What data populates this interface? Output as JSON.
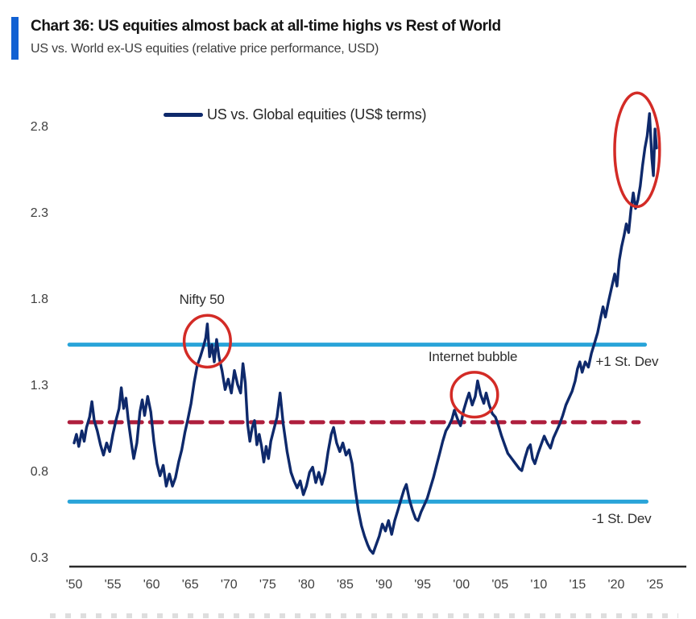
{
  "header": {
    "title": "Chart 36: US equities almost back at all-time highs vs Rest of World",
    "subtitle": "US vs. World ex-US equities (relative price performance, USD)",
    "accent_color": "#1161d3"
  },
  "legend": {
    "label": "US vs. Global equities (US$ terms)",
    "line_color": "#0e296b"
  },
  "chart_data": {
    "type": "line",
    "title": "US vs. Global equities (US$ terms)",
    "xlabel": "",
    "ylabel": "",
    "x_range": [
      1950,
      2025
    ],
    "y_range": [
      0.3,
      2.8
    ],
    "grid": false,
    "legend_position": "top-left-inside",
    "axis_color": "#2a2a2a",
    "y_tick_labels": [
      "2.8",
      "2.3",
      "1.8",
      "1.3",
      "0.8",
      "0.3"
    ],
    "x_tick_labels": [
      "'50",
      "'55",
      "'60",
      "'65",
      "'70",
      "'75",
      "'80",
      "'85",
      "'90",
      "'95",
      "'00",
      "'05",
      "'10",
      "'15",
      "'20",
      "'25"
    ],
    "x_tick_years": [
      1950,
      1955,
      1960,
      1965,
      1970,
      1975,
      1980,
      1985,
      1990,
      1995,
      2000,
      2005,
      2010,
      2015,
      2020,
      2025
    ],
    "ref_lines": [
      {
        "id": "plus-1-st-dev",
        "value": 1.54,
        "label": "+1 St. Dev",
        "style": "solid",
        "color": "#29a4d9",
        "x_start": 1949.4,
        "x_end": 2023.7,
        "label_pos": [
          2021.4,
          1.44
        ]
      },
      {
        "id": "mean",
        "value": 1.09,
        "label": "",
        "style": "dashed",
        "color": "#ae1e3d",
        "x_start": 1949.4,
        "x_end": 2022.9
      },
      {
        "id": "minus-1-st-dev",
        "value": 0.63,
        "label": "-1 St. Dev",
        "style": "solid",
        "color": "#29a4d9",
        "x_start": 1949.4,
        "x_end": 2023.9,
        "label_pos": [
          2020.7,
          0.53
        ]
      }
    ],
    "annotations": [
      {
        "id": "nifty-50",
        "label": "Nifty 50",
        "label_pos": [
          1966.5,
          1.8
        ],
        "circle_center": [
          1967.2,
          1.56
        ],
        "circle_rx_years": 3.0,
        "circle_ry_units": 0.15,
        "color": "#d32b26"
      },
      {
        "id": "internet-bubble",
        "label": "Internet bubble",
        "label_pos": [
          2001.5,
          1.47
        ],
        "circle_center": [
          2001.7,
          1.25
        ],
        "circle_rx_years": 3.0,
        "circle_ry_units": 0.13,
        "color": "#d32b26"
      },
      {
        "id": "recent-peak",
        "label": "",
        "label_pos": null,
        "circle_center": [
          2022.7,
          2.67
        ],
        "circle_rx_years": 2.9,
        "circle_ry_units": 0.33,
        "color": "#d32b26"
      }
    ],
    "series": [
      {
        "name": "US vs. Global equities (US$ terms)",
        "color": "#0e296b",
        "points": [
          [
            1950.0,
            0.97
          ],
          [
            1950.3,
            1.02
          ],
          [
            1950.6,
            0.95
          ],
          [
            1951.0,
            1.04
          ],
          [
            1951.3,
            0.98
          ],
          [
            1951.6,
            1.06
          ],
          [
            1952.0,
            1.12
          ],
          [
            1952.3,
            1.21
          ],
          [
            1952.6,
            1.1
          ],
          [
            1953.0,
            1.04
          ],
          [
            1953.4,
            0.96
          ],
          [
            1953.8,
            0.9
          ],
          [
            1954.2,
            0.97
          ],
          [
            1954.6,
            0.92
          ],
          [
            1955.0,
            1.02
          ],
          [
            1955.4,
            1.1
          ],
          [
            1955.8,
            1.17
          ],
          [
            1956.1,
            1.29
          ],
          [
            1956.4,
            1.17
          ],
          [
            1956.7,
            1.23
          ],
          [
            1957.0,
            1.1
          ],
          [
            1957.4,
            0.97
          ],
          [
            1957.7,
            0.88
          ],
          [
            1958.1,
            0.97
          ],
          [
            1958.5,
            1.15
          ],
          [
            1958.8,
            1.22
          ],
          [
            1959.1,
            1.13
          ],
          [
            1959.5,
            1.24
          ],
          [
            1959.9,
            1.15
          ],
          [
            1960.3,
            0.98
          ],
          [
            1960.7,
            0.85
          ],
          [
            1961.1,
            0.78
          ],
          [
            1961.5,
            0.84
          ],
          [
            1961.9,
            0.72
          ],
          [
            1962.3,
            0.79
          ],
          [
            1962.7,
            0.72
          ],
          [
            1963.1,
            0.77
          ],
          [
            1963.5,
            0.86
          ],
          [
            1963.9,
            0.93
          ],
          [
            1964.3,
            1.03
          ],
          [
            1964.7,
            1.11
          ],
          [
            1965.1,
            1.2
          ],
          [
            1965.5,
            1.32
          ],
          [
            1965.9,
            1.42
          ],
          [
            1966.3,
            1.47
          ],
          [
            1966.7,
            1.53
          ],
          [
            1967.0,
            1.58
          ],
          [
            1967.2,
            1.66
          ],
          [
            1967.5,
            1.47
          ],
          [
            1967.8,
            1.54
          ],
          [
            1968.1,
            1.44
          ],
          [
            1968.4,
            1.57
          ],
          [
            1968.7,
            1.47
          ],
          [
            1969.1,
            1.39
          ],
          [
            1969.5,
            1.28
          ],
          [
            1969.9,
            1.34
          ],
          [
            1970.3,
            1.26
          ],
          [
            1970.7,
            1.39
          ],
          [
            1971.1,
            1.31
          ],
          [
            1971.5,
            1.26
          ],
          [
            1971.8,
            1.43
          ],
          [
            1972.1,
            1.32
          ],
          [
            1972.4,
            1.08
          ],
          [
            1972.7,
            0.98
          ],
          [
            1973.0,
            1.06
          ],
          [
            1973.3,
            1.1
          ],
          [
            1973.6,
            0.96
          ],
          [
            1973.9,
            1.02
          ],
          [
            1974.2,
            0.95
          ],
          [
            1974.5,
            0.86
          ],
          [
            1974.8,
            0.95
          ],
          [
            1975.1,
            0.88
          ],
          [
            1975.4,
            0.98
          ],
          [
            1975.8,
            1.05
          ],
          [
            1976.2,
            1.12
          ],
          [
            1976.6,
            1.26
          ],
          [
            1977.0,
            1.08
          ],
          [
            1977.5,
            0.92
          ],
          [
            1978.0,
            0.8
          ],
          [
            1978.4,
            0.75
          ],
          [
            1978.8,
            0.71
          ],
          [
            1979.2,
            0.75
          ],
          [
            1979.6,
            0.67
          ],
          [
            1980.0,
            0.72
          ],
          [
            1980.4,
            0.8
          ],
          [
            1980.8,
            0.83
          ],
          [
            1981.2,
            0.74
          ],
          [
            1981.6,
            0.8
          ],
          [
            1982.0,
            0.73
          ],
          [
            1982.4,
            0.8
          ],
          [
            1982.8,
            0.92
          ],
          [
            1983.2,
            1.02
          ],
          [
            1983.5,
            1.06
          ],
          [
            1983.9,
            0.97
          ],
          [
            1984.3,
            0.92
          ],
          [
            1984.7,
            0.97
          ],
          [
            1985.1,
            0.9
          ],
          [
            1985.5,
            0.93
          ],
          [
            1985.9,
            0.85
          ],
          [
            1986.3,
            0.7
          ],
          [
            1986.7,
            0.58
          ],
          [
            1987.1,
            0.49
          ],
          [
            1987.5,
            0.43
          ],
          [
            1987.9,
            0.38
          ],
          [
            1988.2,
            0.35
          ],
          [
            1988.6,
            0.33
          ],
          [
            1989.0,
            0.38
          ],
          [
            1989.4,
            0.43
          ],
          [
            1989.8,
            0.5
          ],
          [
            1990.2,
            0.46
          ],
          [
            1990.6,
            0.52
          ],
          [
            1991.0,
            0.44
          ],
          [
            1991.4,
            0.52
          ],
          [
            1991.8,
            0.58
          ],
          [
            1992.2,
            0.64
          ],
          [
            1992.6,
            0.7
          ],
          [
            1992.9,
            0.73
          ],
          [
            1993.3,
            0.64
          ],
          [
            1993.7,
            0.58
          ],
          [
            1994.1,
            0.53
          ],
          [
            1994.4,
            0.52
          ],
          [
            1994.8,
            0.57
          ],
          [
            1995.2,
            0.61
          ],
          [
            1995.6,
            0.65
          ],
          [
            1996.0,
            0.71
          ],
          [
            1996.4,
            0.77
          ],
          [
            1996.8,
            0.84
          ],
          [
            1997.2,
            0.91
          ],
          [
            1997.6,
            0.98
          ],
          [
            1998.0,
            1.04
          ],
          [
            1998.4,
            1.07
          ],
          [
            1998.8,
            1.11
          ],
          [
            1999.1,
            1.16
          ],
          [
            1999.5,
            1.11
          ],
          [
            1999.9,
            1.07
          ],
          [
            2000.3,
            1.16
          ],
          [
            2000.7,
            1.22
          ],
          [
            2001.0,
            1.26
          ],
          [
            2001.4,
            1.19
          ],
          [
            2001.8,
            1.24
          ],
          [
            2002.1,
            1.33
          ],
          [
            2002.5,
            1.25
          ],
          [
            2002.9,
            1.2
          ],
          [
            2003.2,
            1.26
          ],
          [
            2003.6,
            1.19
          ],
          [
            2004.0,
            1.14
          ],
          [
            2004.4,
            1.12
          ],
          [
            2004.8,
            1.07
          ],
          [
            2005.2,
            1.01
          ],
          [
            2005.6,
            0.96
          ],
          [
            2006.0,
            0.91
          ],
          [
            2006.5,
            0.88
          ],
          [
            2007.0,
            0.85
          ],
          [
            2007.5,
            0.82
          ],
          [
            2007.8,
            0.81
          ],
          [
            2008.2,
            0.88
          ],
          [
            2008.6,
            0.94
          ],
          [
            2008.9,
            0.96
          ],
          [
            2009.2,
            0.88
          ],
          [
            2009.5,
            0.85
          ],
          [
            2009.9,
            0.91
          ],
          [
            2010.3,
            0.96
          ],
          [
            2010.7,
            1.01
          ],
          [
            2011.1,
            0.97
          ],
          [
            2011.5,
            0.94
          ],
          [
            2011.9,
            1.0
          ],
          [
            2012.3,
            1.04
          ],
          [
            2012.7,
            1.08
          ],
          [
            2013.1,
            1.13
          ],
          [
            2013.5,
            1.19
          ],
          [
            2013.9,
            1.23
          ],
          [
            2014.3,
            1.27
          ],
          [
            2014.7,
            1.33
          ],
          [
            2015.0,
            1.4
          ],
          [
            2015.3,
            1.44
          ],
          [
            2015.6,
            1.38
          ],
          [
            2016.0,
            1.44
          ],
          [
            2016.4,
            1.41
          ],
          [
            2016.8,
            1.49
          ],
          [
            2017.2,
            1.55
          ],
          [
            2017.6,
            1.61
          ],
          [
            2018.0,
            1.7
          ],
          [
            2018.3,
            1.76
          ],
          [
            2018.6,
            1.7
          ],
          [
            2019.0,
            1.79
          ],
          [
            2019.4,
            1.87
          ],
          [
            2019.8,
            1.95
          ],
          [
            2020.1,
            1.88
          ],
          [
            2020.4,
            2.03
          ],
          [
            2020.7,
            2.11
          ],
          [
            2021.0,
            2.17
          ],
          [
            2021.3,
            2.24
          ],
          [
            2021.6,
            2.19
          ],
          [
            2021.9,
            2.32
          ],
          [
            2022.2,
            2.42
          ],
          [
            2022.5,
            2.33
          ],
          [
            2022.8,
            2.38
          ],
          [
            2023.1,
            2.46
          ],
          [
            2023.4,
            2.58
          ],
          [
            2023.7,
            2.68
          ],
          [
            2024.0,
            2.75
          ],
          [
            2024.3,
            2.88
          ],
          [
            2024.6,
            2.62
          ],
          [
            2024.8,
            2.52
          ],
          [
            2025.0,
            2.79
          ],
          [
            2025.2,
            2.68
          ]
        ]
      }
    ]
  }
}
